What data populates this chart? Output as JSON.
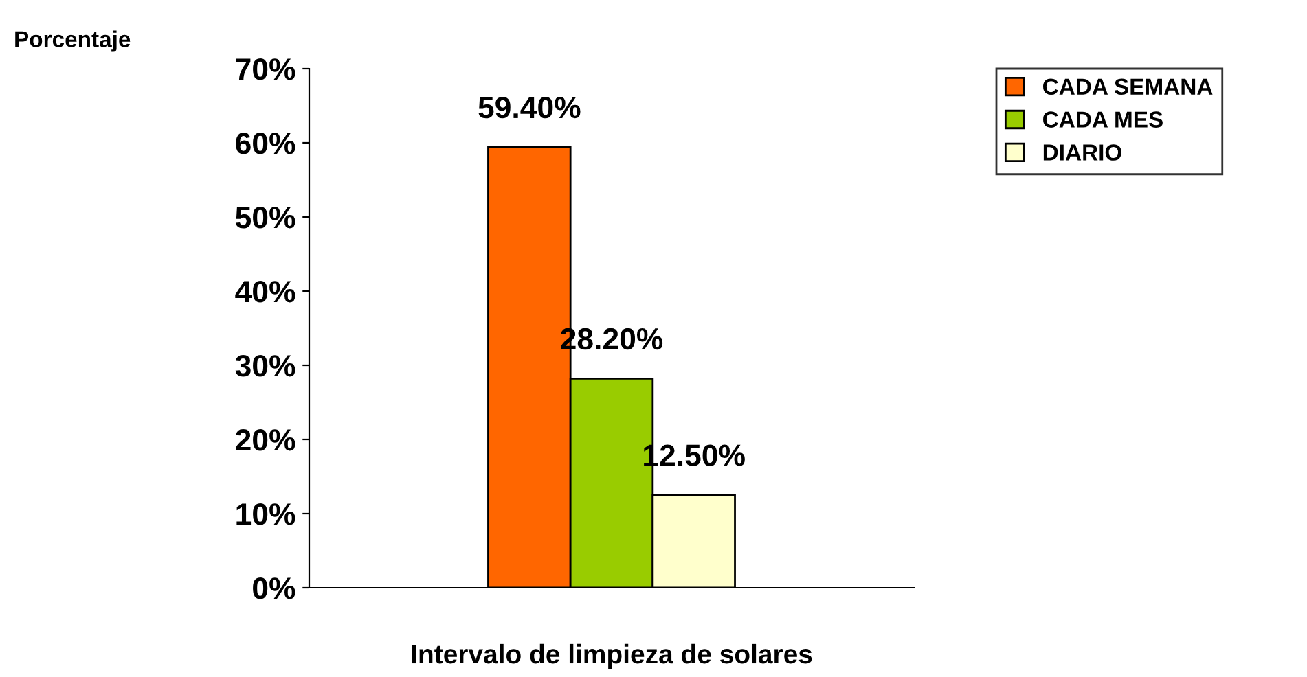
{
  "chart_data": {
    "type": "bar",
    "ylabel": "Porcentaje",
    "xlabel": "Intervalo de limpieza de solares",
    "categories": [
      null
    ],
    "series": [
      {
        "name": "CADA SEMANA",
        "color": "#ff6600",
        "values": [
          59.4
        ],
        "value_labels": [
          "59.40%"
        ]
      },
      {
        "name": "CADA MES",
        "color": "#99cc00",
        "values": [
          28.2
        ],
        "value_labels": [
          "28.20%"
        ]
      },
      {
        "name": "DIARIO",
        "color": "#ffffcc",
        "values": [
          12.5
        ],
        "value_labels": [
          "12.50%"
        ]
      }
    ],
    "ylim": [
      0,
      70
    ],
    "yticks": [
      {
        "value": 0,
        "label": "0%"
      },
      {
        "value": 10,
        "label": "10%"
      },
      {
        "value": 20,
        "label": "20%"
      },
      {
        "value": 30,
        "label": "30%"
      },
      {
        "value": 40,
        "label": "40%"
      },
      {
        "value": 50,
        "label": "50%"
      },
      {
        "value": 60,
        "label": "60%"
      },
      {
        "value": 70,
        "label": "70%"
      }
    ],
    "grid": false,
    "legend": "right"
  }
}
